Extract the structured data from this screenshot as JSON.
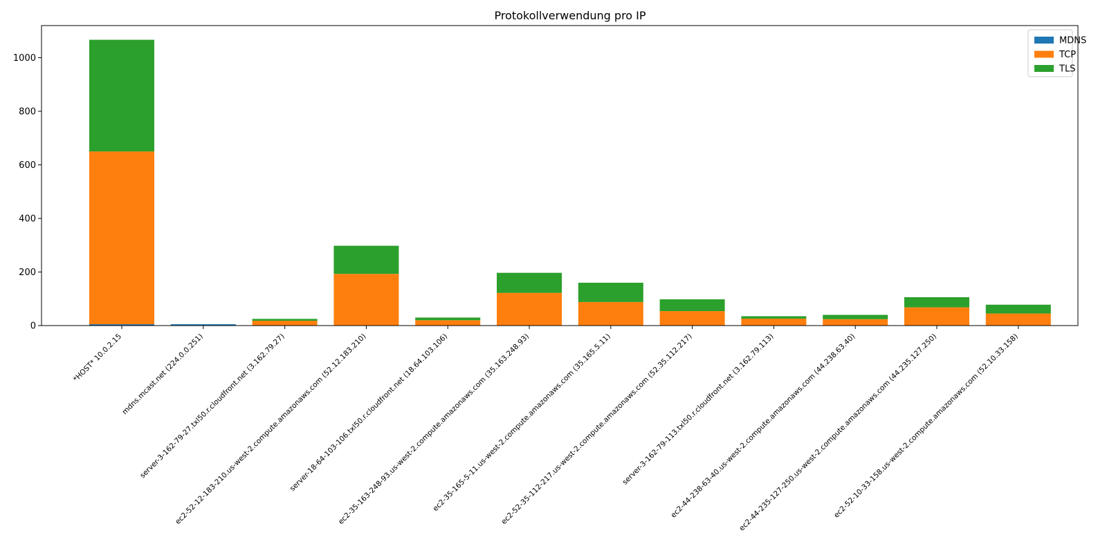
{
  "chart_data": {
    "type": "bar",
    "stacked": true,
    "title": "Protokollverwendung pro IP",
    "xlabel": "",
    "ylabel": "",
    "ylim": [
      0,
      1120
    ],
    "yticks": [
      0,
      200,
      400,
      600,
      800,
      1000
    ],
    "grid": false,
    "legend_position": "top-right",
    "categories": [
      "*HOST* 10.0.2.15",
      "mdns.mcast.net (224.0.0.251)",
      "server-3-162-79-27.txl50.r.cloudfront.net (3.162.79.27)",
      "ec2-52-12-183-210.us-west-2.compute.amazonaws.com (52.12.183.210)",
      "server-18-64-103-106.txl50.r.cloudfront.net (18.64.103.106)",
      "ec2-35-163-248-93.us-west-2.compute.amazonaws.com (35.163.248.93)",
      "ec2-35-165-5-11.us-west-2.compute.amazonaws.com (35.165.5.11)",
      "ec2-52-35-112-217.us-west-2.compute.amazonaws.com (52.35.112.217)",
      "server-3-162-79-113.txl50.r.cloudfront.net (3.162.79.113)",
      "ec2-44-238-63-40.us-west-2.compute.amazonaws.com (44.238.63.40)",
      "ec2-44-235-127-250.us-west-2.compute.amazonaws.com (44.235.127.250)",
      "ec2-52-10-33-158.us-west-2.compute.amazonaws.com (52.10.33.158)"
    ],
    "series": [
      {
        "name": "MDNS",
        "color": "#1f77b4",
        "values": [
          5,
          5,
          0,
          0,
          0,
          0,
          0,
          0,
          0,
          0,
          0,
          0
        ]
      },
      {
        "name": "TCP",
        "color": "#ff7f0e",
        "values": [
          645,
          0,
          18,
          193,
          20,
          122,
          88,
          54,
          26,
          24,
          68,
          45
        ]
      },
      {
        "name": "TLS",
        "color": "#2ca02c",
        "values": [
          417,
          0,
          7,
          105,
          10,
          75,
          72,
          44,
          9,
          16,
          38,
          33
        ]
      }
    ]
  }
}
